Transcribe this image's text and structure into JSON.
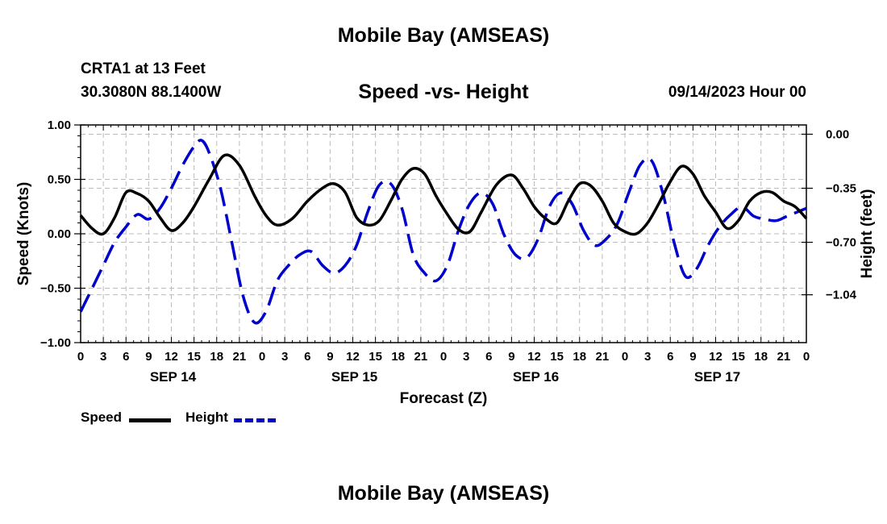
{
  "header": {
    "title": "Mobile Bay (AMSEAS)",
    "station": "CRTA1 at 13 Feet",
    "coordinates": "30.3080N  88.1400W",
    "subtitle": "Speed -vs- Height",
    "datetime": "09/14/2023 Hour 00"
  },
  "footer": {
    "title": "Mobile Bay (AMSEAS)"
  },
  "legend": {
    "speed_label": "Speed",
    "height_label": "Height",
    "speed_color": "#000000",
    "height_color": "#0000cc"
  },
  "chart_data": {
    "type": "line",
    "xlabel": "Forecast (Z)",
    "ylabel_left": "Speed (Knots)",
    "ylabel_right": "Height (feet)",
    "x_unit": "hours since 09/14/2023 00Z",
    "xlim": [
      0,
      96
    ],
    "x_ticks": [
      0,
      3,
      6,
      9,
      12,
      15,
      18,
      21,
      24,
      27,
      30,
      33,
      36,
      39,
      42,
      45,
      48,
      51,
      54,
      57,
      60,
      63,
      66,
      69,
      72,
      75,
      78,
      81,
      84,
      87,
      90,
      93,
      96
    ],
    "x_tick_labels": [
      "0",
      "3",
      "6",
      "9",
      "12",
      "15",
      "18",
      "21",
      "0",
      "3",
      "6",
      "9",
      "12",
      "15",
      "18",
      "21",
      "0",
      "3",
      "6",
      "9",
      "12",
      "15",
      "18",
      "21",
      "0",
      "3",
      "6",
      "9",
      "12",
      "15",
      "18",
      "21",
      "0"
    ],
    "date_labels": [
      {
        "label": "SEP 14",
        "hour": 12
      },
      {
        "label": "SEP 15",
        "hour": 36
      },
      {
        "label": "SEP 16",
        "hour": 60
      },
      {
        "label": "SEP 17",
        "hour": 84
      }
    ],
    "ylim_left": [
      -1.0,
      1.0
    ],
    "y_ticks_left": [
      1.0,
      0.5,
      0.0,
      -0.5,
      -1.0
    ],
    "y_tick_labels_left": [
      "1.00",
      "0.50",
      "0.00",
      "−0.50",
      "−1.00"
    ],
    "ylim_right": [
      -1.35,
      0.06
    ],
    "y_ticks_right": [
      0.0,
      -0.35,
      -0.7,
      -1.04
    ],
    "y_tick_labels_right": [
      "0.00",
      "−0.35",
      "−0.70",
      "−1.04"
    ],
    "grid": true,
    "series": [
      {
        "name": "Speed",
        "axis": "left",
        "color": "#000000",
        "dash": "solid",
        "points": [
          [
            0,
            0.17
          ],
          [
            1.5,
            0.05
          ],
          [
            3,
            0.0
          ],
          [
            4.5,
            0.15
          ],
          [
            6,
            0.38
          ],
          [
            7.5,
            0.37
          ],
          [
            9,
            0.3
          ],
          [
            10.5,
            0.15
          ],
          [
            12,
            0.03
          ],
          [
            13.5,
            0.1
          ],
          [
            15,
            0.25
          ],
          [
            17,
            0.5
          ],
          [
            19,
            0.72
          ],
          [
            21,
            0.63
          ],
          [
            23,
            0.35
          ],
          [
            24.5,
            0.17
          ],
          [
            26,
            0.08
          ],
          [
            28,
            0.14
          ],
          [
            30,
            0.3
          ],
          [
            32,
            0.42
          ],
          [
            33.5,
            0.46
          ],
          [
            35,
            0.38
          ],
          [
            36.5,
            0.15
          ],
          [
            38,
            0.08
          ],
          [
            39.5,
            0.12
          ],
          [
            41,
            0.3
          ],
          [
            42.5,
            0.5
          ],
          [
            44,
            0.6
          ],
          [
            45.5,
            0.55
          ],
          [
            47,
            0.35
          ],
          [
            48.5,
            0.18
          ],
          [
            50,
            0.04
          ],
          [
            51.5,
            0.02
          ],
          [
            53,
            0.2
          ],
          [
            55,
            0.45
          ],
          [
            57,
            0.54
          ],
          [
            58.5,
            0.42
          ],
          [
            60,
            0.25
          ],
          [
            61.5,
            0.14
          ],
          [
            63,
            0.1
          ],
          [
            64.5,
            0.3
          ],
          [
            66,
            0.46
          ],
          [
            67.5,
            0.44
          ],
          [
            69,
            0.3
          ],
          [
            70.5,
            0.1
          ],
          [
            72,
            0.02
          ],
          [
            73.5,
            0.0
          ],
          [
            75,
            0.1
          ],
          [
            76.5,
            0.28
          ],
          [
            78,
            0.48
          ],
          [
            79.5,
            0.62
          ],
          [
            81,
            0.55
          ],
          [
            82.5,
            0.35
          ],
          [
            84,
            0.2
          ],
          [
            85.5,
            0.05
          ],
          [
            87,
            0.12
          ],
          [
            88.5,
            0.3
          ],
          [
            90,
            0.38
          ],
          [
            91.5,
            0.38
          ],
          [
            93,
            0.3
          ],
          [
            94.5,
            0.25
          ],
          [
            96,
            0.14
          ]
        ]
      },
      {
        "name": "Height",
        "axis": "right",
        "color": "#0000cc",
        "dash": "dashed",
        "points": [
          [
            0,
            -1.15
          ],
          [
            1.5,
            -1.0
          ],
          [
            3,
            -0.85
          ],
          [
            4.5,
            -0.7
          ],
          [
            6,
            -0.6
          ],
          [
            7.5,
            -0.52
          ],
          [
            9,
            -0.55
          ],
          [
            10.5,
            -0.48
          ],
          [
            12,
            -0.35
          ],
          [
            13.5,
            -0.2
          ],
          [
            15,
            -0.08
          ],
          [
            16,
            -0.04
          ],
          [
            17,
            -0.12
          ],
          [
            18.5,
            -0.35
          ],
          [
            20,
            -0.7
          ],
          [
            21.5,
            -1.05
          ],
          [
            23,
            -1.22
          ],
          [
            24.5,
            -1.15
          ],
          [
            26,
            -0.95
          ],
          [
            27.5,
            -0.85
          ],
          [
            29,
            -0.78
          ],
          [
            30.5,
            -0.76
          ],
          [
            32,
            -0.85
          ],
          [
            33.5,
            -0.9
          ],
          [
            35,
            -0.85
          ],
          [
            36.5,
            -0.72
          ],
          [
            38,
            -0.5
          ],
          [
            39.5,
            -0.33
          ],
          [
            41,
            -0.32
          ],
          [
            42.5,
            -0.48
          ],
          [
            44,
            -0.78
          ],
          [
            45.5,
            -0.9
          ],
          [
            47,
            -0.95
          ],
          [
            48.5,
            -0.85
          ],
          [
            50,
            -0.62
          ],
          [
            51.5,
            -0.45
          ],
          [
            53,
            -0.38
          ],
          [
            54.5,
            -0.45
          ],
          [
            56,
            -0.65
          ],
          [
            57.5,
            -0.78
          ],
          [
            59,
            -0.8
          ],
          [
            60.5,
            -0.68
          ],
          [
            62,
            -0.47
          ],
          [
            63.5,
            -0.38
          ],
          [
            65,
            -0.45
          ],
          [
            66.5,
            -0.62
          ],
          [
            68,
            -0.72
          ],
          [
            69.5,
            -0.68
          ],
          [
            71,
            -0.58
          ],
          [
            72.5,
            -0.38
          ],
          [
            74,
            -0.2
          ],
          [
            75.5,
            -0.17
          ],
          [
            77,
            -0.38
          ],
          [
            78.5,
            -0.7
          ],
          [
            80,
            -0.92
          ],
          [
            81.5,
            -0.87
          ],
          [
            83,
            -0.72
          ],
          [
            84.5,
            -0.6
          ],
          [
            86,
            -0.52
          ],
          [
            87.5,
            -0.47
          ],
          [
            89,
            -0.53
          ],
          [
            90.5,
            -0.55
          ],
          [
            92,
            -0.56
          ],
          [
            93.5,
            -0.53
          ],
          [
            96,
            -0.48
          ]
        ]
      }
    ]
  }
}
